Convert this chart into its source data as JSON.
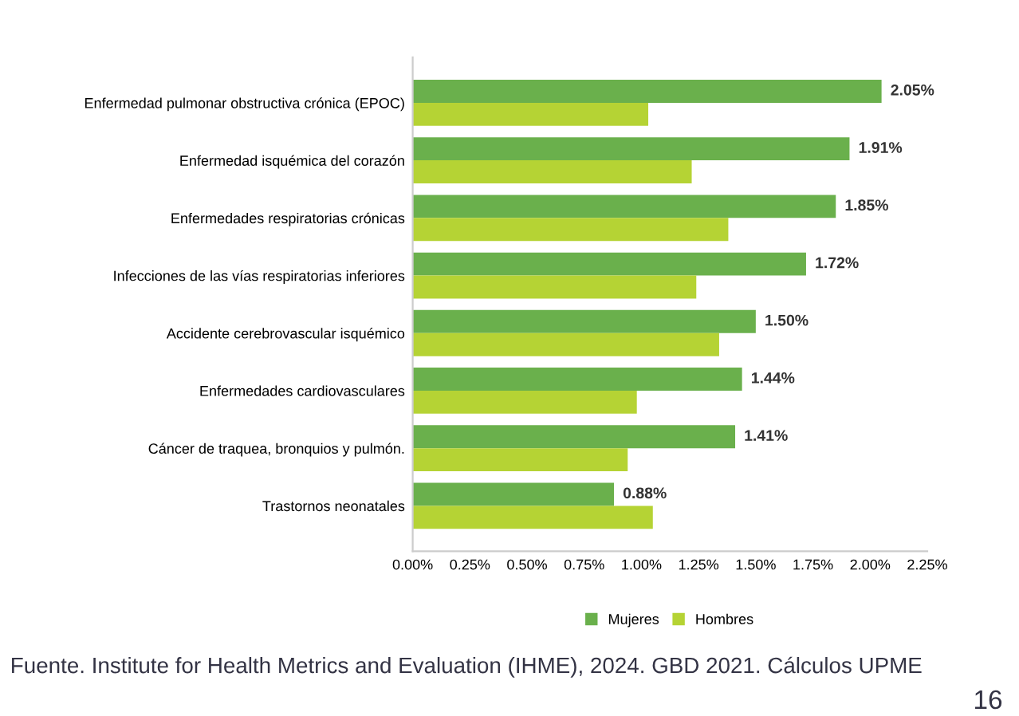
{
  "chart_data": {
    "type": "bar",
    "orientation": "horizontal",
    "categories": [
      "Enfermedad pulmonar obstructiva crónica (EPOC)",
      "Enfermedad isquémica del corazón",
      "Enfermedades respiratorias crónicas",
      "Infecciones de las vías respiratorias inferiores",
      "Accidente cerebrovascular isquémico",
      "Enfermedades cardiovasculares",
      "Cáncer de traquea, bronquios y pulmón.",
      "Trastornos neonatales"
    ],
    "series": [
      {
        "name": "Mujeres",
        "color": "#6ab04c",
        "values": [
          2.05,
          1.91,
          1.85,
          1.72,
          1.5,
          1.44,
          1.41,
          0.88
        ],
        "value_labels": [
          "2.05%",
          "1.91%",
          "1.85%",
          "1.72%",
          "1.50%",
          "1.44%",
          "1.41%",
          "0.88%"
        ]
      },
      {
        "name": "Hombres",
        "color": "#b5d334",
        "values": [
          1.03,
          1.22,
          1.38,
          1.24,
          1.34,
          0.98,
          0.94,
          1.05
        ]
      }
    ],
    "xlim": [
      0,
      2.25
    ],
    "xticks": [
      {
        "value": 0,
        "label": "0.00%"
      },
      {
        "value": 0.25,
        "label": "0.25%"
      },
      {
        "value": 0.5,
        "label": "0.50%"
      },
      {
        "value": 0.75,
        "label": "0.75%"
      },
      {
        "value": 1.0,
        "label": "1.00%"
      },
      {
        "value": 1.25,
        "label": "1.25%"
      },
      {
        "value": 1.5,
        "label": "1.50%"
      },
      {
        "value": 1.75,
        "label": "1.75%"
      },
      {
        "value": 2.0,
        "label": "2.00%"
      },
      {
        "value": 2.25,
        "label": "2.25%"
      }
    ],
    "grid": false,
    "legend": "bottom",
    "annotations": [
      "Fuente. Institute for Health Metrics and Evaluation (IHME), 2024. GBD 2021. Cálculos UPME",
      "16"
    ]
  }
}
